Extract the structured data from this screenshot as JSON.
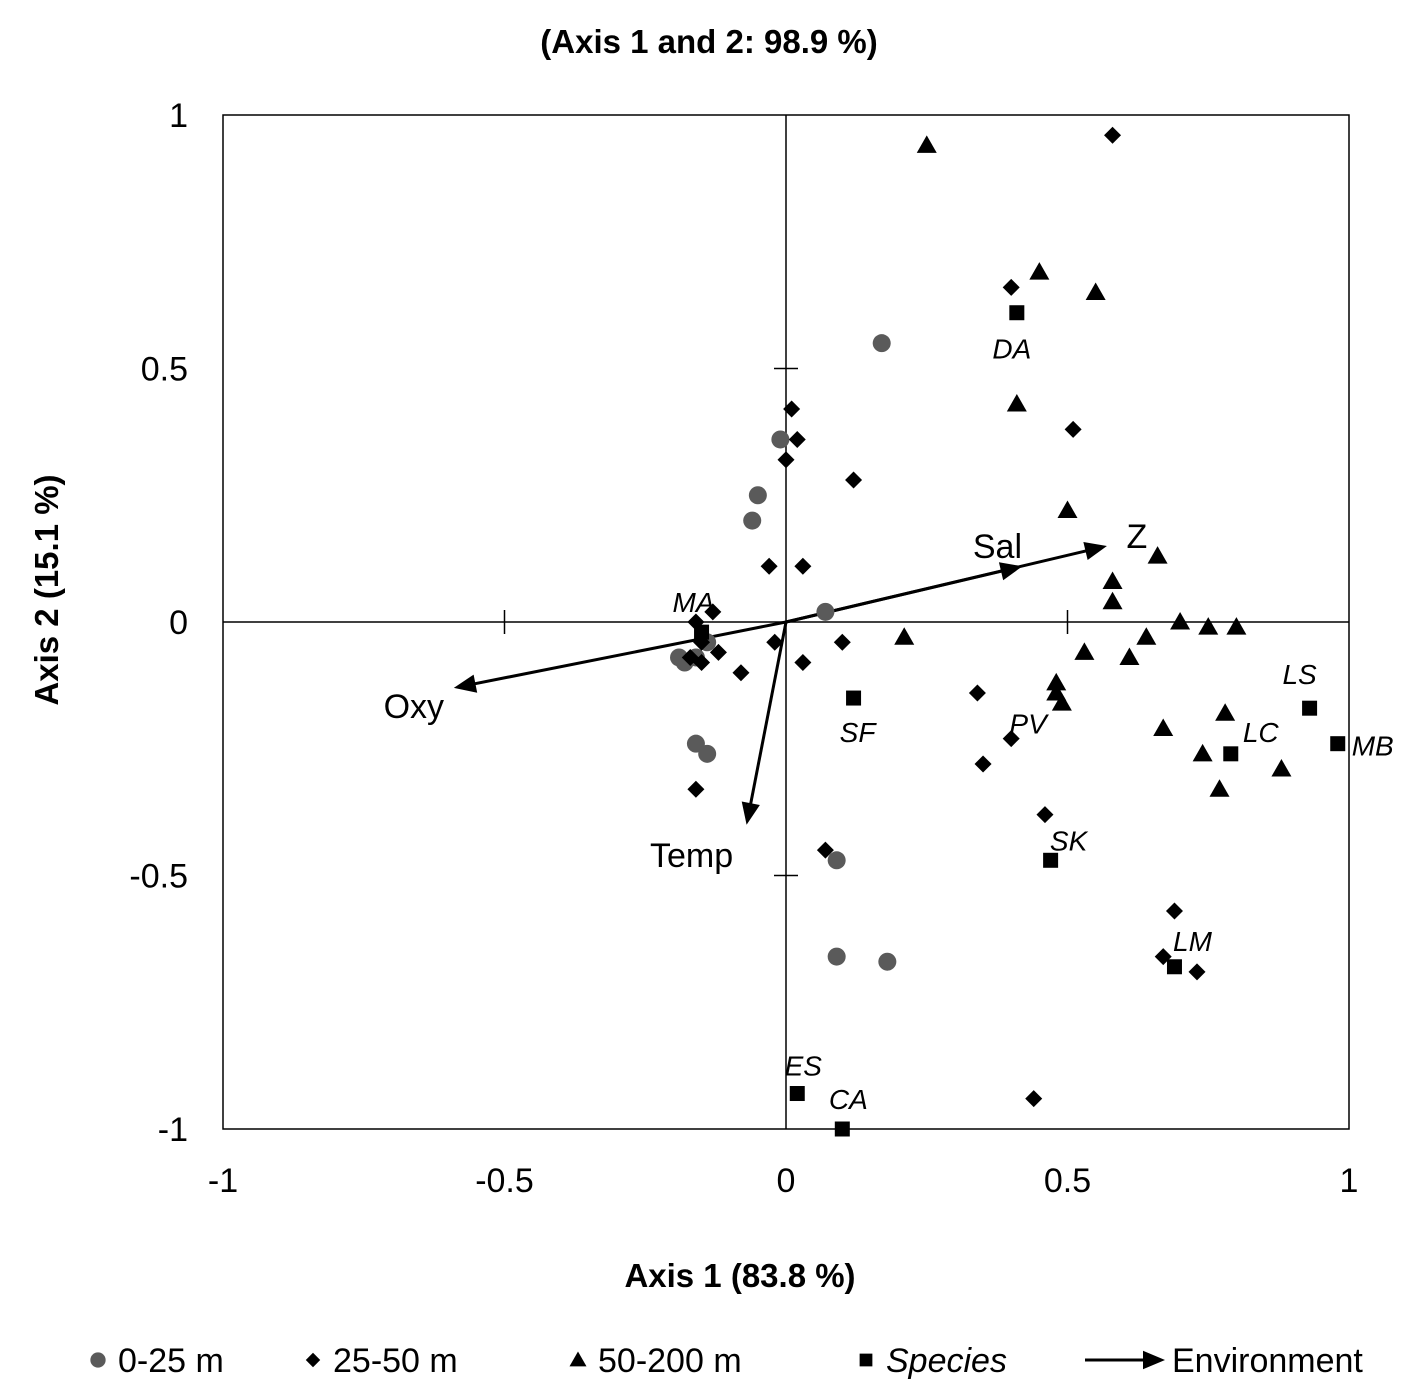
{
  "chart_data": {
    "type": "scatter",
    "title": "(Axis 1 and 2: 98.9 %)",
    "xlabel": "Axis 1 (83.8 %)",
    "ylabel": "Axis 2 (15.1 %)",
    "xlim": [
      -1,
      1
    ],
    "ylim": [
      -1,
      1
    ],
    "x_ticks": [
      "-1",
      "-0.5",
      "0",
      "0.5",
      "1"
    ],
    "y_ticks": [
      "1",
      "0.5",
      "0",
      "-0.5",
      "-1"
    ],
    "grid": false,
    "legend_position": "bottom",
    "series": [
      {
        "name": "0-25 m",
        "marker": "circle",
        "color": "#5a5a5a",
        "points": [
          [
            0.17,
            0.55
          ],
          [
            -0.01,
            0.36
          ],
          [
            -0.05,
            0.25
          ],
          [
            -0.06,
            0.2
          ],
          [
            0.07,
            0.02
          ],
          [
            -0.14,
            -0.04
          ],
          [
            -0.19,
            -0.07
          ],
          [
            -0.18,
            -0.08
          ],
          [
            -0.16,
            -0.07
          ],
          [
            -0.16,
            -0.24
          ],
          [
            -0.14,
            -0.26
          ],
          [
            0.09,
            -0.47
          ],
          [
            0.09,
            -0.66
          ],
          [
            0.18,
            -0.67
          ]
        ]
      },
      {
        "name": "25-50 m",
        "marker": "diamond",
        "color": "#000000",
        "points": [
          [
            0.58,
            0.96
          ],
          [
            0.4,
            0.66
          ],
          [
            0.51,
            0.38
          ],
          [
            0.01,
            0.42
          ],
          [
            0.02,
            0.36
          ],
          [
            0.0,
            0.32
          ],
          [
            0.12,
            0.28
          ],
          [
            -0.03,
            0.11
          ],
          [
            0.03,
            0.11
          ],
          [
            -0.13,
            0.02
          ],
          [
            -0.16,
            0.0
          ],
          [
            -0.15,
            -0.04
          ],
          [
            -0.02,
            -0.04
          ],
          [
            0.1,
            -0.04
          ],
          [
            -0.17,
            -0.07
          ],
          [
            -0.15,
            -0.08
          ],
          [
            -0.12,
            -0.06
          ],
          [
            0.03,
            -0.08
          ],
          [
            -0.08,
            -0.1
          ],
          [
            0.34,
            -0.14
          ],
          [
            0.4,
            -0.23
          ],
          [
            0.35,
            -0.28
          ],
          [
            -0.16,
            -0.33
          ],
          [
            0.46,
            -0.38
          ],
          [
            0.07,
            -0.45
          ],
          [
            0.69,
            -0.57
          ],
          [
            0.67,
            -0.66
          ],
          [
            0.73,
            -0.69
          ],
          [
            0.44,
            -0.94
          ]
        ]
      },
      {
        "name": "50-200 m",
        "marker": "triangle",
        "color": "#000000",
        "points": [
          [
            0.25,
            0.94
          ],
          [
            0.45,
            0.69
          ],
          [
            0.55,
            0.65
          ],
          [
            0.41,
            0.43
          ],
          [
            0.5,
            0.22
          ],
          [
            0.66,
            0.13
          ],
          [
            0.58,
            0.08
          ],
          [
            0.58,
            0.04
          ],
          [
            0.7,
            0.0
          ],
          [
            0.75,
            -0.01
          ],
          [
            0.8,
            -0.01
          ],
          [
            0.21,
            -0.03
          ],
          [
            0.64,
            -0.03
          ],
          [
            0.53,
            -0.06
          ],
          [
            0.61,
            -0.07
          ],
          [
            0.48,
            -0.12
          ],
          [
            0.48,
            -0.14
          ],
          [
            0.49,
            -0.16
          ],
          [
            0.78,
            -0.18
          ],
          [
            0.67,
            -0.21
          ],
          [
            0.74,
            -0.26
          ],
          [
            0.88,
            -0.29
          ],
          [
            0.77,
            -0.33
          ]
        ]
      },
      {
        "name": "Species",
        "marker": "square",
        "color": "#000000",
        "points": [
          {
            "x": 0.41,
            "y": 0.61,
            "label": "DA"
          },
          {
            "x": -0.15,
            "y": -0.02,
            "label": "MA"
          },
          {
            "x": 0.12,
            "y": -0.15,
            "label": "SF"
          },
          {
            "x": 0.47,
            "y": -0.47,
            "label": "SK"
          },
          {
            "x": 0.69,
            "y": -0.68,
            "label": "LM"
          },
          {
            "x": 0.93,
            "y": -0.17,
            "label": "LS"
          },
          {
            "x": 0.79,
            "y": -0.26,
            "label": "LC"
          },
          {
            "x": 0.98,
            "y": -0.24,
            "label": "MB"
          },
          {
            "x": 0.02,
            "y": -0.93,
            "label": "ES"
          },
          {
            "x": 0.1,
            "y": -1.0,
            "label": "CA"
          },
          {
            "x": 0.4,
            "y": -0.23,
            "label": "PV"
          }
        ]
      },
      {
        "name": "Environment",
        "marker": "arrow",
        "color": "#000000",
        "vectors": [
          {
            "label": "Oxy",
            "x": -0.59,
            "y": -0.13
          },
          {
            "label": "Temp",
            "x": -0.07,
            "y": -0.4
          },
          {
            "label": "Sal",
            "x": 0.42,
            "y": 0.11
          },
          {
            "label": "Z",
            "x": 0.57,
            "y": 0.15
          }
        ]
      }
    ]
  }
}
